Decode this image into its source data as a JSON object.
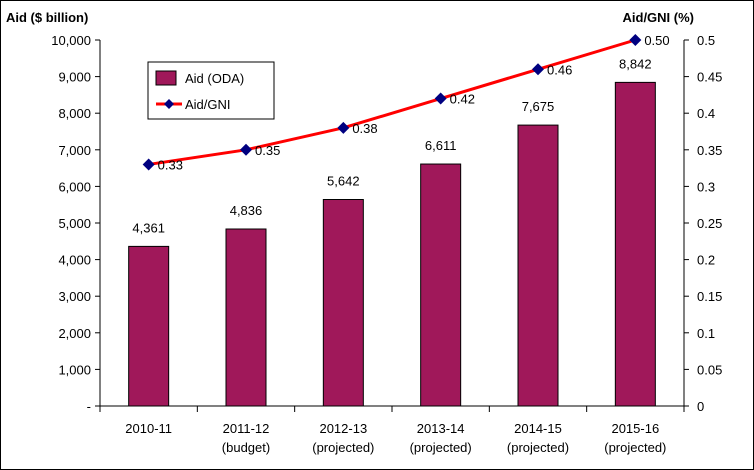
{
  "chart_data": {
    "type": "bar",
    "left_axis_title": "Aid ($ billion)",
    "right_axis_title": "Aid/GNI (%)",
    "categories": [
      [
        "2010-11"
      ],
      [
        "2011-12",
        "(budget)"
      ],
      [
        "2012-13",
        "(projected)"
      ],
      [
        "2013-14",
        "(projected)"
      ],
      [
        "2014-15",
        "(projected)"
      ],
      [
        "2015-16",
        "(projected)"
      ]
    ],
    "series": [
      {
        "name": "Aid (ODA)",
        "kind": "bar",
        "axis": "left",
        "color": "#a0185a",
        "values": [
          4361,
          4836,
          5642,
          6611,
          7675,
          8842
        ],
        "labels": [
          "4,361",
          "4,836",
          "5,642",
          "6,611",
          "7,675",
          "8,842"
        ]
      },
      {
        "name": "Aid/GNI",
        "kind": "line",
        "axis": "right",
        "line_color": "#ff0000",
        "marker_color": "#000080",
        "values": [
          0.33,
          0.35,
          0.38,
          0.42,
          0.46,
          0.5
        ],
        "labels": [
          "0.33",
          "0.35",
          "0.38",
          "0.42",
          "0.46",
          "0.50"
        ]
      }
    ],
    "left_axis": {
      "ylim": [
        0,
        10000
      ],
      "ticks": [
        0,
        1000,
        2000,
        3000,
        4000,
        5000,
        6000,
        7000,
        8000,
        9000,
        10000
      ],
      "tick_labels": [
        "-",
        "1,000",
        "2,000",
        "3,000",
        "4,000",
        "5,000",
        "6,000",
        "7,000",
        "8,000",
        "9,000",
        "10,000"
      ]
    },
    "right_axis": {
      "ylim": [
        0,
        0.5
      ],
      "ticks": [
        0,
        0.05,
        0.1,
        0.15,
        0.2,
        0.25,
        0.3,
        0.35,
        0.4,
        0.45,
        0.5
      ],
      "tick_labels": [
        "0",
        "0.05",
        "0.1",
        "0.15",
        "0.2",
        "0.25",
        "0.3",
        "0.35",
        "0.4",
        "0.45",
        "0.5"
      ]
    },
    "legend_position": "top-left",
    "grid": false
  }
}
